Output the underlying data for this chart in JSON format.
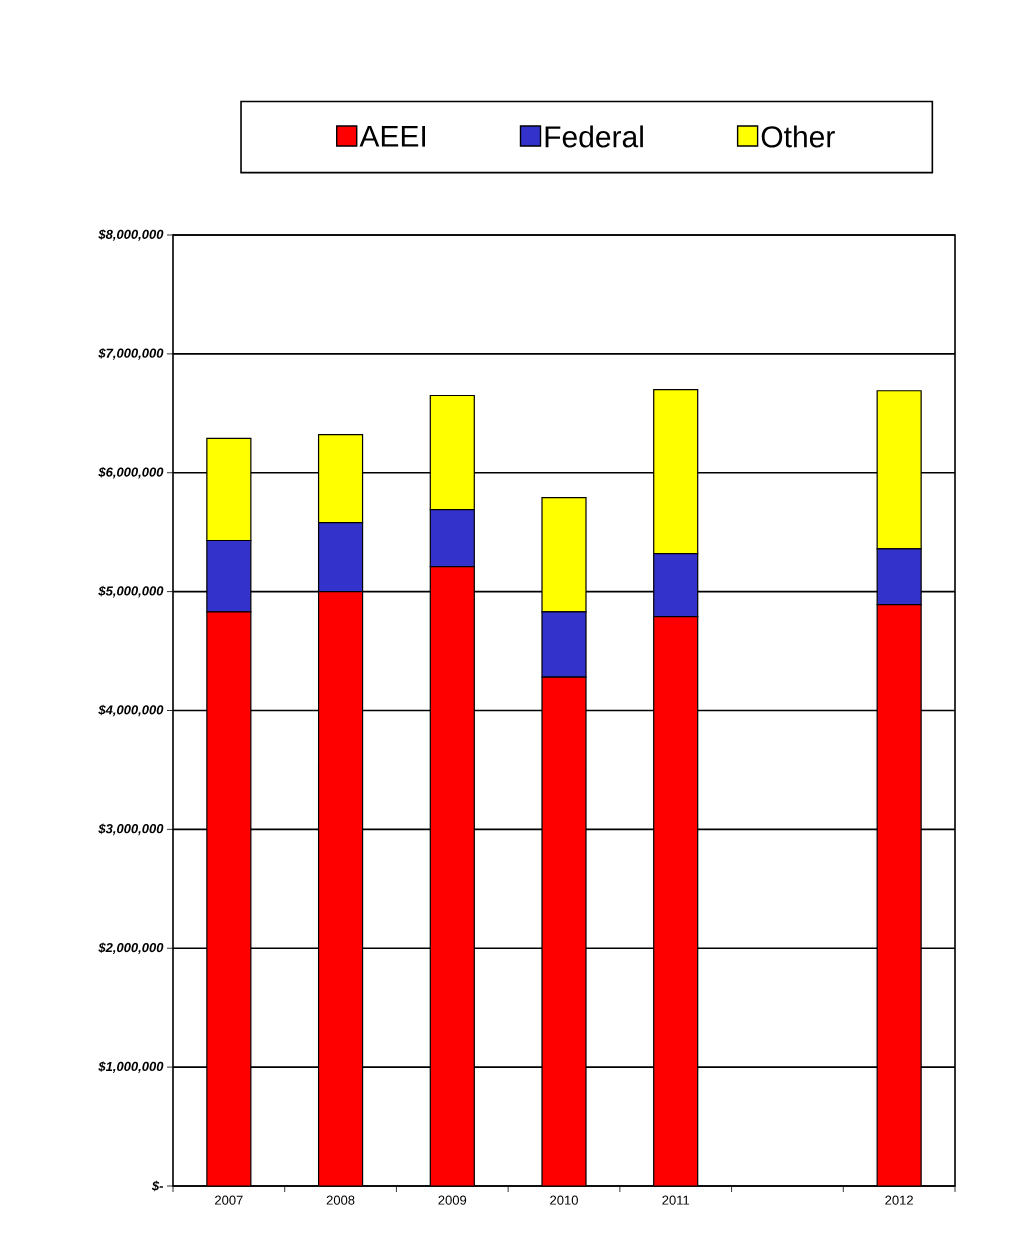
{
  "chart_data": {
    "type": "bar",
    "stacked": true,
    "categories": [
      "2007",
      "2008",
      "2009",
      "2010",
      "2011",
      null,
      "2012"
    ],
    "series": [
      {
        "name": "AEEI",
        "color": "#ff0000",
        "values": [
          4830000,
          5000000,
          5210000,
          4280000,
          4790000,
          null,
          4890000
        ]
      },
      {
        "name": "Federal",
        "color": "#3333cc",
        "values": [
          600000,
          580000,
          480000,
          550000,
          530000,
          null,
          470000
        ]
      },
      {
        "name": "Other",
        "color": "#ffff00",
        "values": [
          860000,
          740000,
          960000,
          960000,
          1380000,
          null,
          1330000
        ]
      }
    ],
    "ylim": [
      0,
      8000000
    ],
    "yticks": [
      {
        "value": 0,
        "label": "$-"
      },
      {
        "value": 1000000,
        "label": "$1,000,000"
      },
      {
        "value": 2000000,
        "label": "$2,000,000"
      },
      {
        "value": 3000000,
        "label": "$3,000,000"
      },
      {
        "value": 4000000,
        "label": "$4,000,000"
      },
      {
        "value": 5000000,
        "label": "$5,000,000"
      },
      {
        "value": 6000000,
        "label": "$6,000,000"
      },
      {
        "value": 7000000,
        "label": "$7,000,000"
      },
      {
        "value": 8000000,
        "label": "$8,000,000"
      }
    ],
    "grid": "y",
    "legend": "top"
  }
}
